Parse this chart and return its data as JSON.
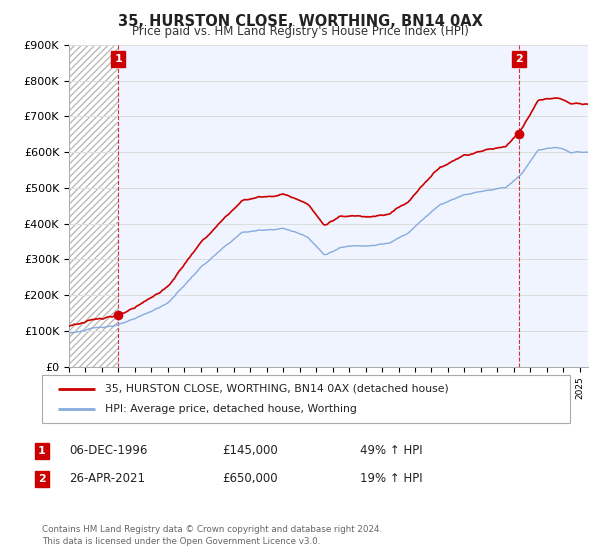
{
  "title": "35, HURSTON CLOSE, WORTHING, BN14 0AX",
  "subtitle": "Price paid vs. HM Land Registry's House Price Index (HPI)",
  "sale1_date": "06-DEC-1996",
  "sale1_price": 145000,
  "sale1_year": 1997.0,
  "sale1_label": "49% ↑ HPI",
  "sale2_date": "26-APR-2021",
  "sale2_price": 650000,
  "sale2_year": 2021.3,
  "sale2_label": "19% ↑ HPI",
  "legend_line1": "35, HURSTON CLOSE, WORTHING, BN14 0AX (detached house)",
  "legend_line2": "HPI: Average price, detached house, Worthing",
  "footer": "Contains HM Land Registry data © Crown copyright and database right 2024.\nThis data is licensed under the Open Government Licence v3.0.",
  "price_line_color": "#cc0000",
  "hpi_line_color": "#88aadd",
  "ylim": [
    0,
    900000
  ],
  "yticks": [
    0,
    100000,
    200000,
    300000,
    400000,
    500000,
    600000,
    700000,
    800000,
    900000
  ],
  "ytick_labels": [
    "£0",
    "£100K",
    "£200K",
    "£300K",
    "£400K",
    "£500K",
    "£600K",
    "£700K",
    "£800K",
    "£900K"
  ],
  "xlim_start": 1994.0,
  "xlim_end": 2025.5,
  "annotation_box_color": "#cc0000",
  "grid_color": "#dddddd",
  "hatch_color": "#cccccc",
  "bg_color": "#f0f4ff"
}
